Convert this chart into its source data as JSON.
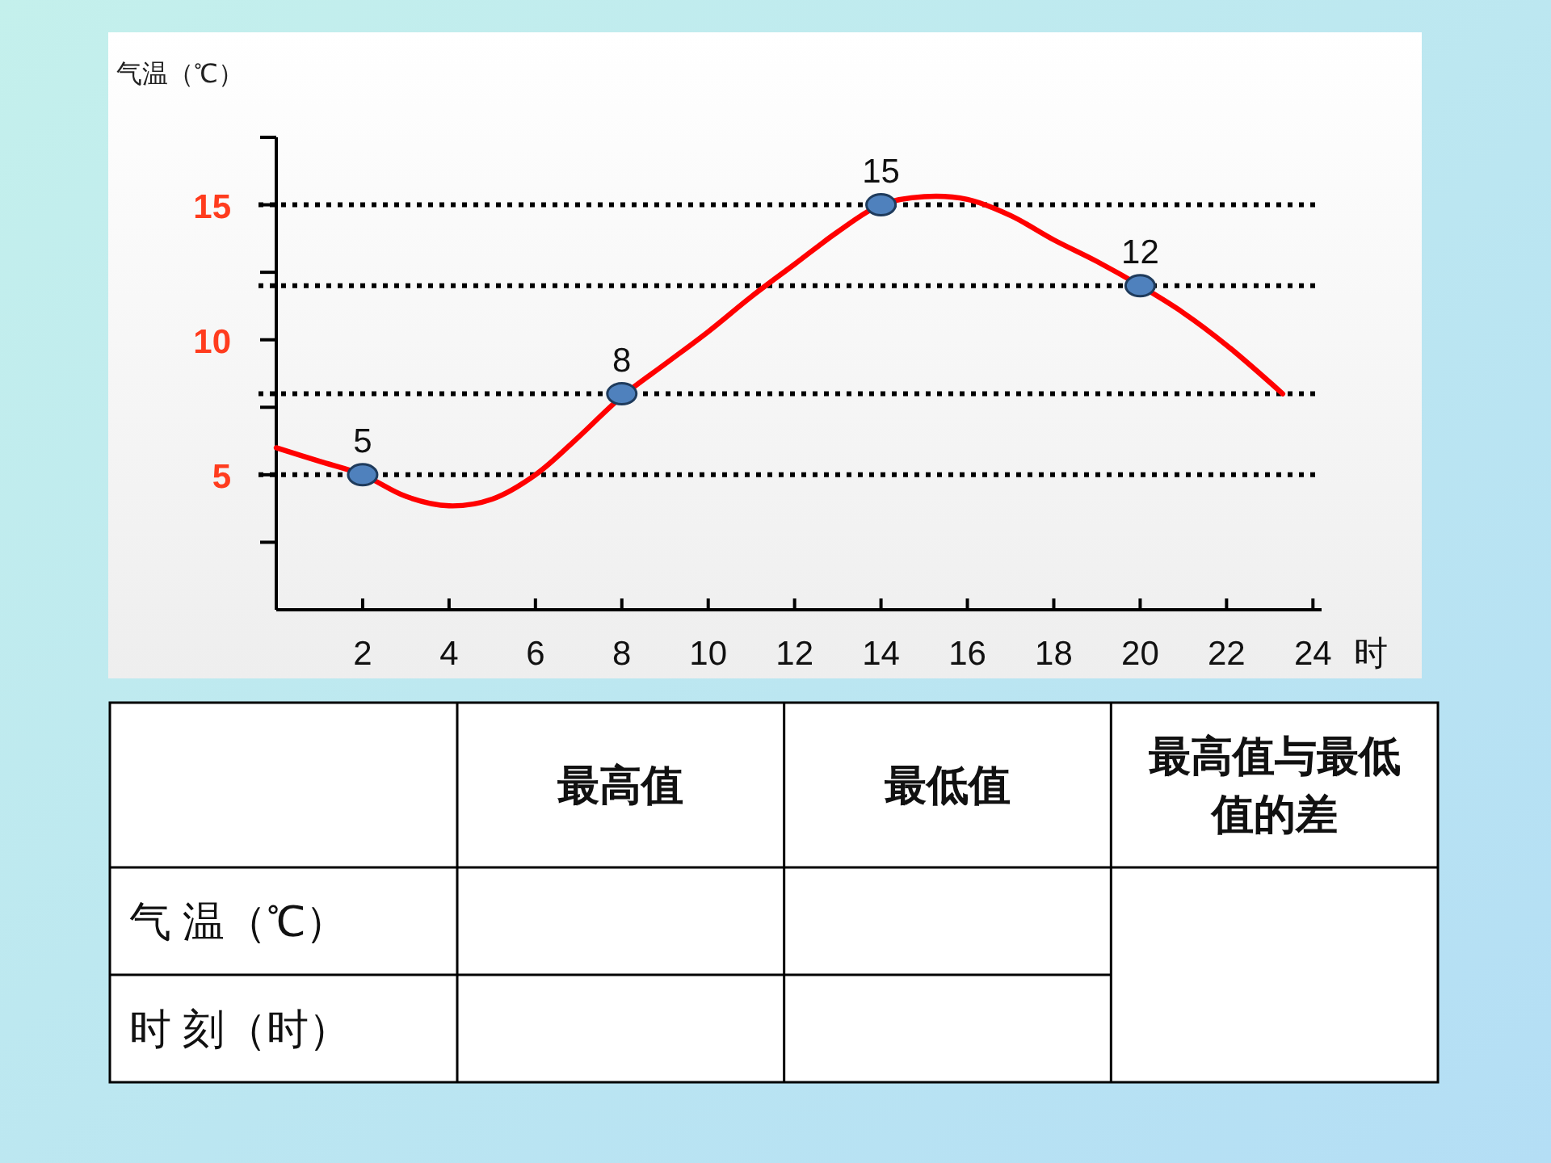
{
  "chart_data": [
    {
      "type": "line",
      "ylabel": "气温（℃）",
      "xlabel": "时",
      "xlim": [
        0,
        24.2
      ],
      "xticks": [
        2,
        4,
        6,
        8,
        10,
        12,
        14,
        16,
        18,
        20,
        22,
        24
      ],
      "ylim": [
        0,
        17.5
      ],
      "yticks": [
        {
          "value": 2.5,
          "label": null
        },
        5,
        {
          "value": 7.5,
          "label": null
        },
        10,
        {
          "value": 12.5,
          "label": null
        },
        15,
        {
          "value": 17.5,
          "label": null
        }
      ],
      "ref_lines": [
        {
          "axis": "y",
          "value": 15,
          "line_style": "dotted",
          "color": "#000000"
        },
        {
          "axis": "y",
          "value": 12,
          "line_style": "dotted",
          "color": "#000000"
        },
        {
          "axis": "y",
          "value": 8,
          "line_style": "dotted",
          "color": "#000000"
        },
        {
          "axis": "y",
          "value": 5,
          "line_style": "dotted",
          "color": "#000000"
        }
      ],
      "series": [
        {
          "type": "line",
          "color": "#ff0000",
          "marker": "none",
          "line_style": "solid",
          "x": [
            0,
            1,
            2,
            3,
            4,
            5,
            6,
            7,
            8,
            9,
            10,
            11,
            12,
            13,
            14,
            15,
            16,
            17,
            18,
            19,
            20,
            21,
            22,
            23.3
          ],
          "values": [
            6.0,
            5.5,
            5.0,
            4.2,
            3.85,
            4.1,
            5.0,
            6.4,
            7.9,
            9.1,
            10.3,
            11.6,
            12.8,
            14.0,
            15.0,
            15.3,
            15.2,
            14.6,
            13.7,
            12.9,
            12.0,
            11.0,
            9.8,
            8.0
          ]
        },
        {
          "type": "scatter",
          "color": "#4f81bd",
          "marker": "circle",
          "x": [
            2,
            8,
            14,
            20
          ],
          "values": [
            5,
            8,
            15,
            12
          ],
          "value_labels": [
            "5",
            "8",
            "15",
            "12"
          ]
        }
      ]
    },
    {
      "type": "other",
      "categories": [
        null,
        "最高值",
        "最低值",
        "最高值与最低值的差"
      ],
      "y_categories": [
        "气 温（℃）",
        "时 刻（时）"
      ]
    }
  ]
}
